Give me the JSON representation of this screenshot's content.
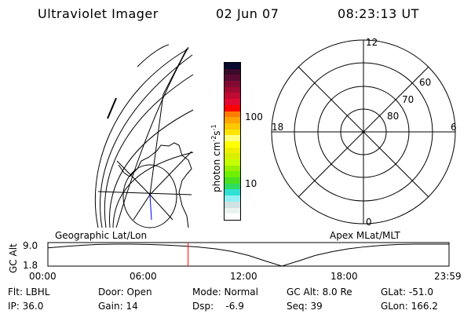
{
  "header": {
    "title": "Ultraviolet Imager",
    "date": "02 Jun 07",
    "time": "08:23:13 UT"
  },
  "colorbar": {
    "label": "photon cm",
    "label_sup1": "-2",
    "label_s": "s",
    "label_sup2": "-1",
    "ticks": [
      "100",
      "10"
    ],
    "colors": [
      "#0a0a2e",
      "#3a0a2a",
      "#5a0a32",
      "#820a32",
      "#a00a32",
      "#c00a32",
      "#e00a32",
      "#ff0000",
      "#ff7c00",
      "#ffa400",
      "#ffc800",
      "#ffe400",
      "#ffff80",
      "#ffff00",
      "#eef000",
      "#d8f000",
      "#c4ff00",
      "#98f000",
      "#6cf000",
      "#48e020",
      "#30dc60",
      "#30e0d4",
      "#90f0f4",
      "#d0e2e2",
      "#e8f4ee",
      "#ffffff"
    ]
  },
  "polar": {
    "labels": {
      "top": "12",
      "bottom": "0",
      "left": "18",
      "right": "6"
    },
    "lat_labels": [
      "60",
      "70",
      "80"
    ]
  },
  "timeline": {
    "left_title": "Geographic Lat/Lon",
    "right_title": "Apex MLat/MLT",
    "ylabel": "GC Alt",
    "yticks": [
      "9.0",
      "1.8"
    ],
    "xticks": [
      "00:00",
      "06:00",
      "12:00",
      "18:00",
      "23:59"
    ],
    "current_time_hours": 8.39,
    "marker_color": "#ff0000"
  },
  "chart_data": {
    "type": "line",
    "title": "",
    "xlabel": "",
    "ylabel": "GC Alt",
    "x": [
      0,
      1,
      2,
      3,
      4,
      5,
      6,
      7,
      8,
      9,
      10,
      11,
      12,
      13,
      14,
      15,
      16,
      17,
      18,
      19,
      20,
      21,
      22,
      23,
      24
    ],
    "values": [
      8.1,
      8.6,
      9.0,
      9.3,
      9.4,
      9.4,
      9.3,
      9.1,
      8.8,
      8.4,
      7.8,
      6.9,
      5.5,
      3.6,
      1.8,
      3.6,
      5.5,
      6.8,
      7.8,
      8.5,
      9.0,
      9.3,
      9.4,
      9.4,
      9.4
    ],
    "ylim": [
      1.8,
      9.4
    ],
    "xlim": [
      0,
      24
    ]
  },
  "status": {
    "flt": "Flt: LBHL",
    "ip": "IP: 36.0",
    "door": "Door: Open",
    "gain": "Gain: 14",
    "mode": "Mode: Normal",
    "dsp": "Dsp:    -6.9",
    "gcalt": "GC Alt: 8.0 Re",
    "seq": "Seq: 39",
    "glat": "GLat: -51.0",
    "glon": "GLon: 166.2"
  }
}
